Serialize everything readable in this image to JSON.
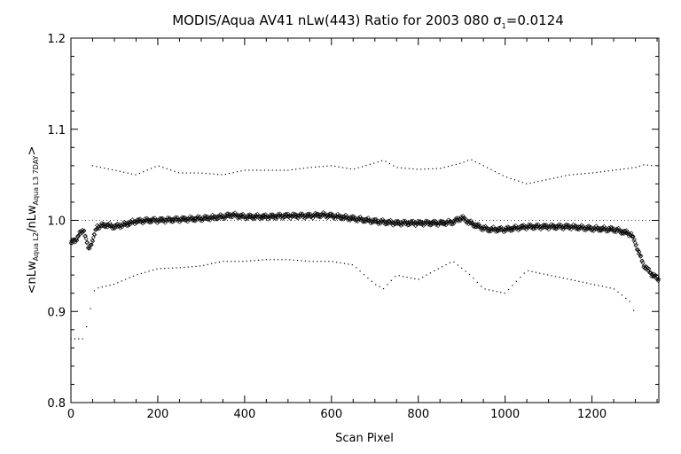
{
  "chart_data": {
    "type": "scatter",
    "title": "MODIS/Aqua AV41 nLw(443) Ratio for 2003 080 σ1=0.0124",
    "title_main": "MODIS/Aqua AV41 nLw(443) Ratio for 2003 080 ",
    "title_sigma": "σ",
    "title_sigma_sub": "1",
    "title_value": "=0.0124",
    "xlabel": "Scan Pixel",
    "ylabel": "<nLwAqua L2/nLwAqua L3 7DAY>",
    "ylabel_parts": {
      "open": "<nLw",
      "sub1": "Aqua L2",
      "slash": "/nLw",
      "sub2": "Aqua L3 7DAY",
      "close": ">"
    },
    "xlim": [
      0,
      1354
    ],
    "ylim": [
      0.8,
      1.2
    ],
    "x_ticks": [
      0,
      200,
      400,
      600,
      800,
      1000,
      1200
    ],
    "x_tick_labels": [
      "0",
      "200",
      "400",
      "600",
      "800",
      "1000",
      "1200"
    ],
    "y_ticks": [
      0.8,
      0.9,
      1.0,
      1.1,
      1.2
    ],
    "y_tick_labels": [
      "0.8",
      "0.9",
      "1.0",
      "1.1",
      "1.2"
    ],
    "reference_line": 1.0,
    "grid": false,
    "series": [
      {
        "style": "diamond-markers",
        "x": [
          0,
          10,
          20,
          30,
          40,
          50,
          60,
          80,
          100,
          120,
          150,
          180,
          200,
          250,
          300,
          350,
          370,
          400,
          450,
          500,
          550,
          580,
          600,
          650,
          700,
          750,
          800,
          850,
          880,
          900,
          920,
          940,
          960,
          1000,
          1050,
          1100,
          1150,
          1200,
          1250,
          1290,
          1300,
          1310,
          1320,
          1330,
          1340,
          1354
        ],
        "y": [
          0.975,
          0.978,
          0.985,
          0.99,
          0.968,
          0.978,
          0.993,
          0.995,
          0.993,
          0.995,
          0.999,
          1.0,
          1.0,
          1.001,
          1.002,
          1.004,
          1.006,
          1.004,
          1.004,
          1.005,
          1.005,
          1.006,
          1.005,
          1.002,
          0.999,
          0.997,
          0.997,
          0.997,
          0.998,
          1.003,
          0.997,
          0.993,
          0.99,
          0.99,
          0.993,
          0.993,
          0.993,
          0.991,
          0.99,
          0.985,
          0.975,
          0.962,
          0.95,
          0.945,
          0.94,
          0.935
        ]
      },
      {
        "style": "upper-envelope",
        "x": [
          50,
          100,
          150,
          200,
          250,
          300,
          350,
          400,
          450,
          500,
          550,
          600,
          650,
          700,
          720,
          750,
          800,
          850,
          900,
          920,
          950,
          1000,
          1050,
          1100,
          1150,
          1200,
          1250,
          1300,
          1320,
          1340
        ],
        "y": [
          1.06,
          1.055,
          1.05,
          1.06,
          1.052,
          1.052,
          1.05,
          1.055,
          1.055,
          1.055,
          1.058,
          1.06,
          1.056,
          1.063,
          1.066,
          1.058,
          1.056,
          1.057,
          1.063,
          1.067,
          1.06,
          1.048,
          1.04,
          1.045,
          1.05,
          1.052,
          1.055,
          1.058,
          1.061,
          1.06
        ]
      },
      {
        "style": "lower-envelope",
        "x": [
          0,
          30,
          55,
          100,
          150,
          200,
          250,
          300,
          350,
          400,
          450,
          500,
          550,
          600,
          650,
          700,
          720,
          750,
          800,
          850,
          880,
          920,
          950,
          1000,
          1050,
          1100,
          1150,
          1200,
          1250,
          1290,
          1300
        ],
        "y": [
          0.87,
          0.87,
          0.925,
          0.93,
          0.94,
          0.947,
          0.948,
          0.95,
          0.955,
          0.955,
          0.957,
          0.957,
          0.955,
          0.955,
          0.951,
          0.93,
          0.925,
          0.94,
          0.935,
          0.948,
          0.955,
          0.94,
          0.925,
          0.92,
          0.945,
          0.94,
          0.935,
          0.93,
          0.925,
          0.91,
          0.895
        ]
      }
    ]
  }
}
